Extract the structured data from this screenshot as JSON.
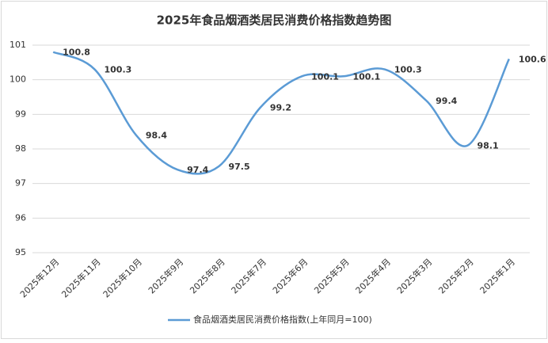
{
  "chart_data": {
    "type": "line",
    "title": "2025年食品烟酒类居民消费价格指数趋势图",
    "categories": [
      "2025年12月",
      "2025年11月",
      "2025年10月",
      "2025年9月",
      "2025年8月",
      "2025年7月",
      "2025年6月",
      "2025年5月",
      "2025年4月",
      "2025年3月",
      "2025年2月",
      "2025年1月"
    ],
    "series": [
      {
        "name": "食品烟酒类居民消费价格指数(上年同月=100)",
        "color": "#5b9bd5",
        "values": [
          100.8,
          100.3,
          98.4,
          97.4,
          97.5,
          99.2,
          100.1,
          100.1,
          100.3,
          99.4,
          98.1,
          100.6
        ]
      }
    ],
    "ylim": [
      95,
      101
    ],
    "yticks": [
      95,
      96,
      97,
      98,
      99,
      100,
      101
    ],
    "grid": true,
    "smooth": true,
    "legend": "bottom"
  }
}
